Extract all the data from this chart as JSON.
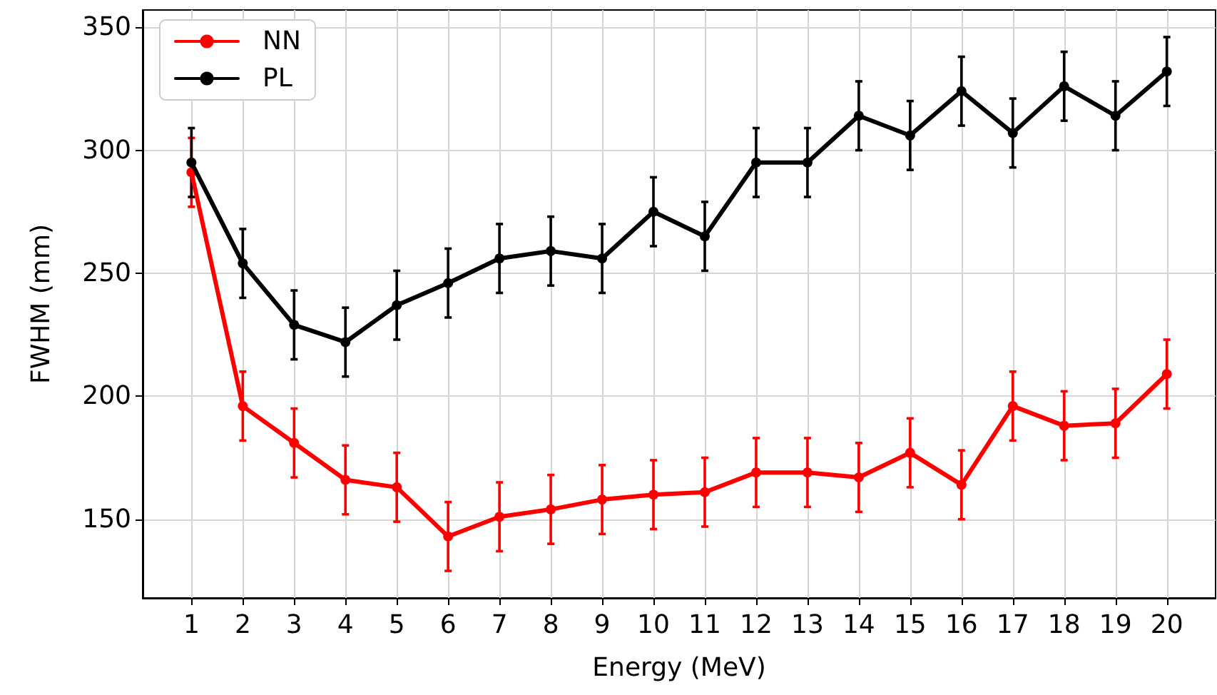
{
  "chart_data": {
    "type": "line",
    "xlabel": "Energy (MeV)",
    "ylabel": "FWHM (mm)",
    "x": [
      1,
      2,
      3,
      4,
      5,
      6,
      7,
      8,
      9,
      10,
      11,
      12,
      13,
      14,
      15,
      16,
      17,
      18,
      19,
      20
    ],
    "series": [
      {
        "name": "NN",
        "color": "#ff0000",
        "values": [
          291,
          196,
          181,
          166,
          163,
          143,
          151,
          154,
          158,
          160,
          161,
          169,
          169,
          167,
          177,
          164,
          196,
          188,
          189,
          209
        ],
        "errors": [
          14,
          14,
          14,
          14,
          14,
          14,
          14,
          14,
          14,
          14,
          14,
          14,
          14,
          14,
          14,
          14,
          14,
          14,
          14,
          14
        ]
      },
      {
        "name": "PL",
        "color": "#000000",
        "values": [
          295,
          254,
          229,
          222,
          237,
          246,
          256,
          259,
          256,
          275,
          265,
          295,
          295,
          314,
          306,
          324,
          307,
          326,
          314,
          332
        ],
        "errors": [
          14,
          14,
          14,
          14,
          14,
          14,
          14,
          14,
          14,
          14,
          14,
          14,
          14,
          14,
          14,
          14,
          14,
          14,
          14,
          14
        ]
      }
    ],
    "xlim": [
      0.05,
      20.95
    ],
    "xticks": [
      1,
      2,
      3,
      4,
      5,
      6,
      7,
      8,
      9,
      10,
      11,
      12,
      13,
      14,
      15,
      16,
      17,
      18,
      19,
      20
    ],
    "ylim": [
      118,
      357
    ],
    "yticks": [
      150,
      200,
      250,
      300,
      350
    ],
    "grid": true,
    "legend": "top left",
    "marker": "circle",
    "line_style": "solid"
  }
}
